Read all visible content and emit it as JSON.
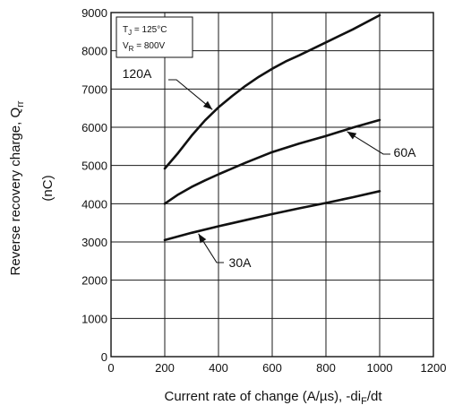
{
  "chart_data": {
    "type": "line",
    "title": "",
    "xlabel": "Current rate of change (A/µs), -di",
    "xlabel_sub": "F",
    "xlabel_suffix": "/dt",
    "ylabel": "Reverse recovery charge, Q",
    "ylabel_sub": "rr",
    "yunit": "(nC)",
    "xlim": [
      0,
      1200
    ],
    "ylim": [
      0,
      9000
    ],
    "xticks": [
      0,
      200,
      400,
      600,
      800,
      1000,
      1200
    ],
    "yticks": [
      0,
      1000,
      2000,
      3000,
      4000,
      5000,
      6000,
      7000,
      8000,
      9000
    ],
    "grid": true,
    "conditions": [
      {
        "main": "T",
        "sub": "J",
        "rest": " = 125°C"
      },
      {
        "main": "V",
        "sub": "R",
        "rest": " = 800V"
      }
    ],
    "series": [
      {
        "name": "120A",
        "x": [
          200,
          250,
          300,
          350,
          400,
          450,
          500,
          550,
          600,
          650,
          700,
          800,
          900,
          1000
        ],
        "y": [
          4920,
          5330,
          5780,
          6180,
          6520,
          6810,
          7080,
          7320,
          7530,
          7720,
          7880,
          8220,
          8560,
          8930
        ]
      },
      {
        "name": "60A",
        "x": [
          200,
          250,
          300,
          350,
          400,
          500,
          600,
          700,
          800,
          900,
          1000
        ],
        "y": [
          4000,
          4240,
          4440,
          4610,
          4770,
          5070,
          5350,
          5570,
          5770,
          5990,
          6190
        ]
      },
      {
        "name": "30A",
        "x": [
          200,
          300,
          400,
          500,
          600,
          700,
          800,
          900,
          1000
        ],
        "y": [
          3050,
          3240,
          3410,
          3570,
          3730,
          3880,
          4020,
          4170,
          4330
        ]
      }
    ]
  }
}
